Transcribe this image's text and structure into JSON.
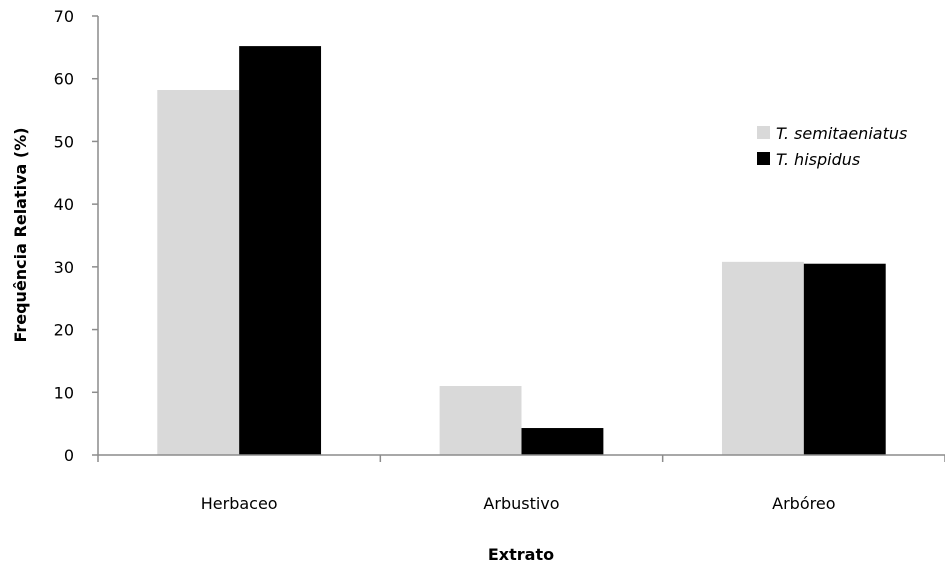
{
  "chart_data": {
    "type": "bar",
    "title": "",
    "xlabel": "Extrato",
    "ylabel": "Frequência Relativa  (%)",
    "categories": [
      "Herbaceo",
      "Arbustivo",
      "Arbóreo"
    ],
    "ylim": [
      0,
      70
    ],
    "yticks": [
      0,
      10,
      20,
      30,
      40,
      50,
      60,
      70
    ],
    "grid": false,
    "legend_position": "right",
    "series": [
      {
        "name": "T. semitaeniatus",
        "color": "#d9d9d9",
        "values": [
          58.2,
          11.0,
          30.8
        ]
      },
      {
        "name": "T. hispidus",
        "color": "#000000",
        "values": [
          65.2,
          4.3,
          30.5
        ]
      }
    ]
  }
}
